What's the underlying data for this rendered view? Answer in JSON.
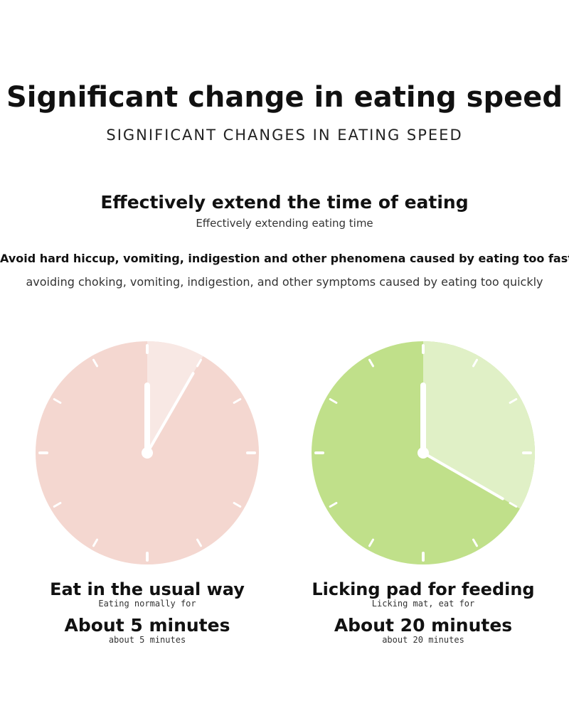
{
  "header": {
    "title": "Significant change in eating speed",
    "subtitle": "SIGNIFICANT CHANGES IN EATING SPEED"
  },
  "intro": {
    "title": "Effectively extend the time of eating",
    "subtitle": "Effectively extending eating time",
    "benefit": "Avoid hard hiccup, vomiting, indigestion and other phenomena caused by eating too fast",
    "benefit_sub": "avoiding choking, vomiting, indigestion, and other symptoms caused by eating too quickly"
  },
  "comparison": [
    {
      "method": "Eat in the usual way",
      "method_sub": "Eating normally for",
      "duration": "About 5 minutes",
      "duration_sub": "about 5 minutes",
      "minutes": 5,
      "face_color": "#f4d7d0",
      "sector_color": "#f8e8e4"
    },
    {
      "method": "Licking pad for feeding",
      "method_sub": "Licking mat, eat for",
      "duration": "About 20 minutes",
      "duration_sub": "about 20 minutes",
      "minutes": 20,
      "face_color": "#c0e08a",
      "sector_color": "#e0f0c6"
    }
  ]
}
